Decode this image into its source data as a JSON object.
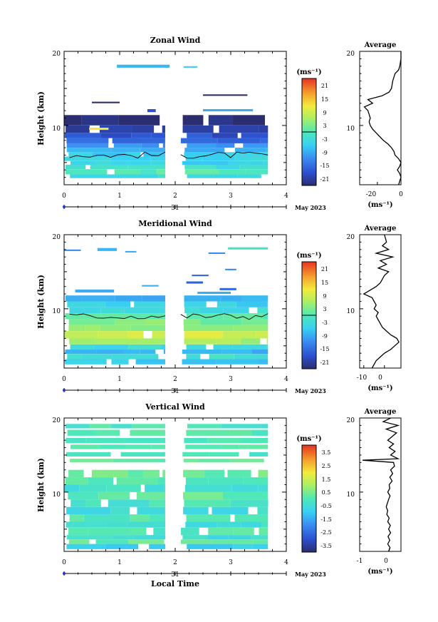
{
  "chart_data": [
    {
      "type": "heatmap",
      "title": "Zonal Wind",
      "xlabel": "",
      "ylabel": "Height (km)",
      "xlim": [
        0,
        4
      ],
      "ylim": [
        2,
        20
      ],
      "xticks": [
        "0",
        "1",
        "2",
        "3",
        "4"
      ],
      "yticks": [
        "10",
        "20"
      ],
      "date_day": "31",
      "date_month": "May 2023",
      "colorbar": {
        "unit": "(ms⁻¹)",
        "ticks": [
          "21",
          "15",
          "9",
          "3",
          "-3",
          "-9",
          "-15",
          "-21"
        ],
        "range": [
          -24,
          24
        ]
      },
      "gap": [
        1.82,
        2.1
      ],
      "time_end": 3.67,
      "bands": [
        {
          "y0": 2.9,
          "y1": 3.4,
          "v": -3
        },
        {
          "y0": 3.4,
          "y1": 4.1,
          "v": 0
        },
        {
          "y0": 4.1,
          "y1": 4.7,
          "v": -3
        },
        {
          "y0": 4.7,
          "y1": 5.2,
          "v": -5
        },
        {
          "y0": 5.2,
          "y1": 5.8,
          "v": -4
        },
        {
          "y0": 5.8,
          "y1": 6.4,
          "v": -6
        },
        {
          "y0": 6.4,
          "y1": 7.0,
          "v": -9
        },
        {
          "y0": 7.0,
          "y1": 7.6,
          "v": -12
        },
        {
          "y0": 7.6,
          "y1": 8.3,
          "v": -15
        },
        {
          "y0": 8.3,
          "y1": 9.0,
          "v": -18
        },
        {
          "y0": 9.0,
          "y1": 10.0,
          "v": -21
        },
        {
          "y0": 10.0,
          "y1": 11.4,
          "v": -24
        }
      ],
      "blobs": [
        {
          "t0": 0.95,
          "t1": 1.9,
          "h0": 17.8,
          "h1": 18.2,
          "v": -8
        },
        {
          "t0": 2.15,
          "t1": 2.4,
          "h0": 17.8,
          "h1": 18.0,
          "v": -6
        },
        {
          "t0": 2.5,
          "t1": 3.3,
          "h0": 14.0,
          "h1": 14.2,
          "v": -24
        },
        {
          "t0": 0.5,
          "t1": 1.0,
          "h0": 13.0,
          "h1": 13.2,
          "v": -24
        },
        {
          "t0": 1.5,
          "t1": 1.65,
          "h0": 11.8,
          "h1": 12.2,
          "v": -18
        },
        {
          "t0": 2.5,
          "t1": 3.4,
          "h0": 11.9,
          "h1": 12.2,
          "v": -9
        },
        {
          "t0": 0.45,
          "t1": 0.8,
          "h0": 9.4,
          "h1": 9.7,
          "v": 12
        }
      ],
      "zero_contour_h": 6.0,
      "profile": {
        "xlim": [
          -35,
          0
        ],
        "xticks": [
          -20,
          0
        ],
        "x_ticklabels": [
          "-20",
          "0"
        ],
        "xlabel": "(ms⁻¹)",
        "title": "Average",
        "h": [
          2,
          2.5,
          3,
          3.5,
          4,
          4.5,
          5,
          5.5,
          6,
          6.5,
          7,
          7.5,
          8,
          8.5,
          9,
          9.5,
          10,
          10.5,
          11,
          11.5,
          12,
          12.5,
          13,
          13.5,
          14,
          14.5,
          15,
          16,
          17,
          17.5,
          18,
          19,
          20
        ],
        "v": [
          -2,
          -1,
          0,
          -1,
          -3,
          -1,
          0,
          -2,
          -5,
          -6,
          -8,
          -11,
          -15,
          -18,
          -21,
          -24,
          -26,
          -27,
          -26,
          -27,
          -28,
          -31,
          -24,
          -28,
          -16,
          -10,
          -8,
          -7,
          -5,
          -2,
          -1,
          0,
          0
        ]
      }
    },
    {
      "type": "heatmap",
      "title": "Meridional Wind",
      "xlabel": "",
      "ylabel": "Height (km)",
      "xlim": [
        0,
        4
      ],
      "ylim": [
        2,
        20
      ],
      "xticks": [
        "0",
        "1",
        "2",
        "3",
        "4"
      ],
      "yticks": [
        "10",
        "20"
      ],
      "date_day": "31",
      "date_month": "May 2023",
      "colorbar": {
        "unit": "(ms⁻¹)",
        "ticks": [
          "21",
          "15",
          "9",
          "3",
          "-3",
          "-9",
          "-15",
          "-21"
        ],
        "range": [
          -24,
          24
        ]
      },
      "gap": [
        1.82,
        2.1
      ],
      "time_end": 3.67,
      "bands": [
        {
          "y0": 2.5,
          "y1": 3.2,
          "v": -6
        },
        {
          "y0": 3.2,
          "y1": 3.9,
          "v": -3
        },
        {
          "y0": 3.9,
          "y1": 4.5,
          "v": -8
        },
        {
          "y0": 4.5,
          "y1": 5.2,
          "v": -4
        },
        {
          "y0": 5.2,
          "y1": 6.0,
          "v": 6
        },
        {
          "y0": 6.0,
          "y1": 7.0,
          "v": 9
        },
        {
          "y0": 7.0,
          "y1": 7.8,
          "v": 5
        },
        {
          "y0": 7.8,
          "y1": 8.6,
          "v": 3
        },
        {
          "y0": 8.6,
          "y1": 9.4,
          "v": 0
        },
        {
          "y0": 9.4,
          "y1": 10.2,
          "v": -3
        },
        {
          "y0": 10.2,
          "y1": 11.0,
          "v": -5
        },
        {
          "y0": 11.0,
          "y1": 11.8,
          "v": -8
        }
      ],
      "blobs": [
        {
          "t0": 0.0,
          "t1": 0.3,
          "h0": 17.8,
          "h1": 18.0,
          "v": -12
        },
        {
          "t0": 0.6,
          "t1": 0.95,
          "h0": 17.8,
          "h1": 18.2,
          "v": -8
        },
        {
          "t0": 1.1,
          "t1": 1.3,
          "h0": 17.6,
          "h1": 17.8,
          "v": -9
        },
        {
          "t0": 2.95,
          "t1": 3.67,
          "h0": 18.0,
          "h1": 18.3,
          "v": -2
        },
        {
          "t0": 2.6,
          "t1": 2.9,
          "h0": 17.4,
          "h1": 17.6,
          "v": -12
        },
        {
          "t0": 2.9,
          "t1": 3.1,
          "h0": 15.2,
          "h1": 15.4,
          "v": -12
        },
        {
          "t0": 2.3,
          "t1": 2.6,
          "h0": 14.4,
          "h1": 14.6,
          "v": -16
        },
        {
          "t0": 2.2,
          "t1": 2.5,
          "h0": 13.4,
          "h1": 13.7,
          "v": -16
        },
        {
          "t0": 1.4,
          "t1": 1.7,
          "h0": 13.0,
          "h1": 13.2,
          "v": -9
        },
        {
          "t0": 0.2,
          "t1": 0.9,
          "h0": 12.2,
          "h1": 12.6,
          "v": -9
        },
        {
          "t0": 2.4,
          "t1": 3.0,
          "h0": 12.0,
          "h1": 12.3,
          "v": -9
        },
        {
          "t0": 2.8,
          "t1": 3.1,
          "h0": 12.5,
          "h1": 12.8,
          "v": -15
        }
      ],
      "zero_contour_h": 9.0,
      "profile": {
        "xlim": [
          -12,
          8
        ],
        "xticks": [
          -10,
          0
        ],
        "x_ticklabels": [
          "-10",
          "0"
        ],
        "xlabel": "(ms⁻¹)",
        "title": "Average",
        "h": [
          2,
          2.5,
          3,
          3.5,
          4,
          4.5,
          5,
          5.5,
          6,
          6.5,
          7,
          7.5,
          8,
          8.5,
          9,
          9.5,
          10,
          10.5,
          11,
          11.5,
          12,
          12.5,
          13,
          13.5,
          14,
          14.5,
          15,
          15.5,
          16,
          16.5,
          17,
          17.5,
          18,
          18.5,
          19,
          20
        ],
        "v": [
          -6,
          -5,
          -4,
          -2,
          0,
          3,
          5,
          7,
          6,
          3,
          1,
          -1,
          -2,
          -3,
          -4,
          -3,
          -5,
          -4,
          -5,
          -6,
          -10,
          -7,
          -4,
          -2,
          -1,
          0,
          2,
          -3,
          1,
          -2,
          4,
          -4,
          2,
          -1,
          1,
          0
        ]
      }
    },
    {
      "type": "heatmap",
      "title": "Vertical Wind",
      "xlabel": "Local Time",
      "ylabel": "Height (km)",
      "xlim": [
        0,
        4
      ],
      "ylim": [
        2,
        20
      ],
      "xticks": [
        "0",
        "1",
        "2",
        "3",
        "4"
      ],
      "yticks": [
        "10",
        "20"
      ],
      "date_day": "31",
      "date_month": "May 2023",
      "colorbar": {
        "unit": "(ms⁻¹)",
        "ticks": [
          "3.5",
          "2.5",
          "1.5",
          "0.5",
          "-0.5",
          "-1.5",
          "-2.5",
          "-3.5"
        ],
        "range": [
          -4,
          4
        ]
      },
      "gap": [
        1.82,
        2.1
      ],
      "time_end": 3.67,
      "bands": [
        {
          "y0": 2.3,
          "y1": 3.0,
          "v": -0.8
        },
        {
          "y0": 3.0,
          "y1": 3.6,
          "v": 0.2
        },
        {
          "y0": 3.6,
          "y1": 4.2,
          "v": -0.5
        },
        {
          "y0": 4.2,
          "y1": 5.2,
          "v": 0.0
        },
        {
          "y0": 5.2,
          "y1": 6.0,
          "v": -0.4
        },
        {
          "y0": 6.0,
          "y1": 7.0,
          "v": 0.1
        },
        {
          "y0": 7.0,
          "y1": 8.0,
          "v": -0.6
        },
        {
          "y0": 8.0,
          "y1": 9.0,
          "v": -0.2
        },
        {
          "y0": 9.0,
          "y1": 10.0,
          "v": 0.2
        },
        {
          "y0": 10.0,
          "y1": 11.0,
          "v": -0.4
        },
        {
          "y0": 11.0,
          "y1": 12.0,
          "v": 0.0
        },
        {
          "y0": 12.0,
          "y1": 13.0,
          "v": 0.3
        },
        {
          "y0": 14.0,
          "y1": 14.5,
          "v": 0.1
        },
        {
          "y0": 14.8,
          "y1": 15.4,
          "v": -0.3
        },
        {
          "y0": 15.8,
          "y1": 16.4,
          "v": 0.2
        },
        {
          "y0": 16.6,
          "y1": 17.3,
          "v": -0.2
        },
        {
          "y0": 17.6,
          "y1": 18.4,
          "v": 0.1
        },
        {
          "y0": 18.6,
          "y1": 19.2,
          "v": -0.1
        }
      ],
      "blobs": [],
      "zero_contour_h": null,
      "profile": {
        "xlim": [
          -1,
          0.4
        ],
        "xticks": [
          -1,
          0
        ],
        "x_ticklabels": [
          "-1",
          "0"
        ],
        "xlabel": "(ms⁻¹)",
        "title": "Average",
        "h": [
          2,
          2.5,
          3,
          3.5,
          4,
          4.5,
          5,
          5.5,
          6,
          6.5,
          7,
          7.5,
          8,
          8.5,
          9,
          9.5,
          10,
          10.5,
          11,
          11.5,
          12,
          12.5,
          13,
          13.5,
          14,
          14.3,
          14.5,
          15,
          15.5,
          16,
          16.5,
          17,
          17.5,
          18,
          18.5,
          19,
          19.5,
          20
        ],
        "v": [
          -0.02,
          0.03,
          -0.05,
          0.02,
          -0.04,
          0.05,
          -0.02,
          0.04,
          -0.05,
          0.0,
          -0.08,
          -0.05,
          -0.1,
          -0.06,
          -0.02,
          0.03,
          -0.05,
          0.02,
          0.0,
          0.1,
          0.02,
          0.12,
          0.05,
          0.18,
          0.15,
          -0.9,
          0.3,
          0.05,
          0.2,
          0.0,
          0.15,
          -0.05,
          0.1,
          0.25,
          -0.1,
          0.3,
          -0.2,
          0.05
        ]
      }
    }
  ]
}
